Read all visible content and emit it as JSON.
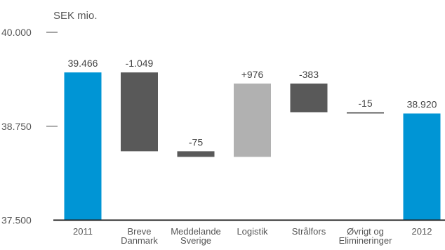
{
  "chart_data": {
    "type": "bar",
    "subtype": "waterfall",
    "unit_label": "SEK mio.",
    "ylim": [
      37500,
      40000
    ],
    "yticks": [
      {
        "value": 37500,
        "label": "37.500"
      },
      {
        "value": 38750,
        "label": "38.750"
      },
      {
        "value": 40000,
        "label": "40.000"
      }
    ],
    "grid": false,
    "steps": [
      {
        "category": [
          "2011"
        ],
        "kind": "total",
        "start": 37500,
        "end": 39466,
        "label": "39.466",
        "color": "#0095d5"
      },
      {
        "category": [
          "Breve",
          "Danmark"
        ],
        "kind": "delta",
        "start": 39466,
        "end": 38417,
        "label": "-1.049",
        "color": "#595959"
      },
      {
        "category": [
          "Meddelande",
          "Sverige"
        ],
        "kind": "delta",
        "start": 38417,
        "end": 38342,
        "label": "-75",
        "color": "#595959"
      },
      {
        "category": [
          "Logistik"
        ],
        "kind": "delta",
        "start": 38342,
        "end": 39318,
        "label": "+976",
        "color": "#b1b1b1"
      },
      {
        "category": [
          "Strålfors"
        ],
        "kind": "delta",
        "start": 39318,
        "end": 38935,
        "label": "-383",
        "color": "#595959"
      },
      {
        "category": [
          "Øvrigt og",
          "Elimineringer"
        ],
        "kind": "delta",
        "start": 38935,
        "end": 38920,
        "label": "-15",
        "color": "#595959"
      },
      {
        "category": [
          "2012"
        ],
        "kind": "total",
        "start": 37500,
        "end": 38920,
        "label": "38.920",
        "color": "#0095d5"
      }
    ]
  }
}
